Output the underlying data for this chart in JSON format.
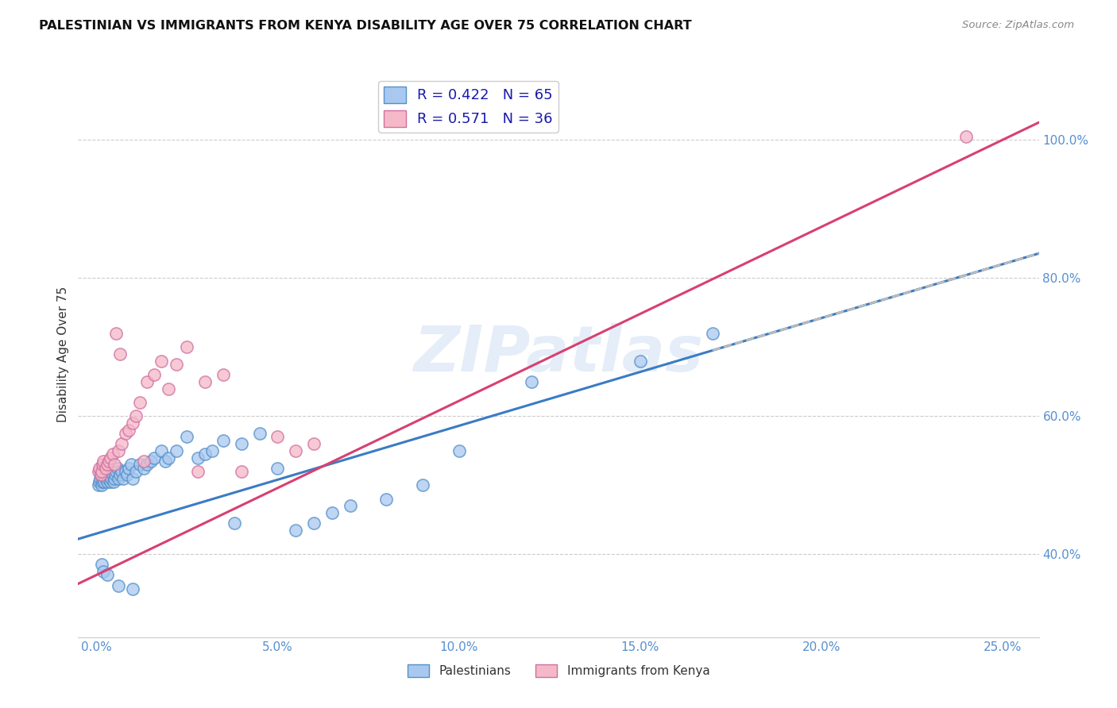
{
  "title": "PALESTINIAN VS IMMIGRANTS FROM KENYA DISABILITY AGE OVER 75 CORRELATION CHART",
  "source": "Source: ZipAtlas.com",
  "ylabel": "Disability Age Over 75",
  "x_tick_labels": [
    "0.0%",
    "5.0%",
    "10.0%",
    "15.0%",
    "20.0%",
    "25.0%"
  ],
  "x_tick_values": [
    0.0,
    5.0,
    10.0,
    15.0,
    20.0,
    25.0
  ],
  "y_tick_labels": [
    "40.0%",
    "60.0%",
    "80.0%",
    "100.0%"
  ],
  "y_tick_values": [
    40.0,
    60.0,
    80.0,
    100.0
  ],
  "watermark": "ZIPatlas",
  "blue_scatter_face": "#a8c8f0",
  "blue_scatter_edge": "#5590c8",
  "pink_scatter_face": "#f5b8c8",
  "pink_scatter_edge": "#d070a0",
  "blue_line": "#3a7cc4",
  "pink_line": "#d84070",
  "dashed_line": "#bbbbbb",
  "xlim": [
    -0.5,
    26.0
  ],
  "ylim": [
    28.0,
    110.0
  ],
  "grid_color": "#cccccc",
  "title_color": "#111111",
  "ylabel_color": "#333333",
  "tick_color": "#5590d0",
  "source_color": "#888888",
  "legend_r1": "0.422",
  "legend_n1": "65",
  "legend_r2": "0.571",
  "legend_n2": "36",
  "blue_line_intercept": 43.0,
  "blue_line_slope": 1.56,
  "pink_line_intercept": 37.0,
  "pink_line_slope": 2.52,
  "pal_x": [
    0.05,
    0.08,
    0.1,
    0.12,
    0.15,
    0.18,
    0.2,
    0.22,
    0.25,
    0.28,
    0.3,
    0.32,
    0.35,
    0.38,
    0.4,
    0.42,
    0.45,
    0.48,
    0.5,
    0.52,
    0.55,
    0.58,
    0.6,
    0.65,
    0.7,
    0.75,
    0.8,
    0.85,
    0.9,
    0.95,
    1.0,
    1.1,
    1.2,
    1.3,
    1.4,
    1.5,
    1.6,
    1.8,
    1.9,
    2.0,
    2.2,
    2.5,
    2.8,
    3.0,
    3.2,
    3.5,
    3.8,
    4.0,
    4.5,
    5.0,
    5.5,
    6.0,
    6.5,
    7.0,
    8.0,
    9.0,
    10.0,
    12.0,
    15.0,
    17.0,
    0.15,
    0.2,
    0.3,
    0.6,
    1.0
  ],
  "pal_y": [
    50.0,
    50.5,
    51.0,
    51.5,
    50.0,
    50.5,
    51.0,
    50.5,
    51.0,
    51.5,
    50.5,
    51.0,
    51.5,
    52.0,
    50.5,
    51.0,
    51.5,
    50.5,
    51.0,
    51.5,
    52.0,
    52.5,
    51.0,
    51.5,
    52.0,
    51.0,
    52.0,
    51.5,
    52.5,
    53.0,
    51.0,
    52.0,
    53.0,
    52.5,
    53.0,
    53.5,
    54.0,
    55.0,
    53.5,
    54.0,
    55.0,
    57.0,
    54.0,
    54.5,
    55.0,
    56.5,
    44.5,
    56.0,
    57.5,
    52.5,
    43.5,
    44.5,
    46.0,
    47.0,
    48.0,
    50.0,
    55.0,
    65.0,
    68.0,
    72.0,
    38.5,
    37.5,
    37.0,
    35.5,
    35.0
  ],
  "ken_x": [
    0.05,
    0.08,
    0.12,
    0.15,
    0.18,
    0.2,
    0.25,
    0.3,
    0.35,
    0.4,
    0.45,
    0.5,
    0.6,
    0.7,
    0.8,
    0.9,
    1.0,
    1.1,
    1.2,
    1.4,
    1.6,
    1.8,
    2.0,
    2.2,
    2.5,
    3.0,
    3.5,
    4.0,
    5.0,
    5.5,
    6.0,
    2.8,
    1.3,
    0.55,
    0.65,
    24.0
  ],
  "ken_y": [
    52.0,
    52.5,
    51.5,
    52.0,
    53.0,
    53.5,
    52.5,
    53.0,
    53.5,
    54.0,
    54.5,
    53.0,
    55.0,
    56.0,
    57.5,
    58.0,
    59.0,
    60.0,
    62.0,
    65.0,
    66.0,
    68.0,
    64.0,
    67.5,
    70.0,
    65.0,
    66.0,
    52.0,
    57.0,
    55.0,
    56.0,
    52.0,
    53.5,
    72.0,
    69.0,
    100.5
  ]
}
